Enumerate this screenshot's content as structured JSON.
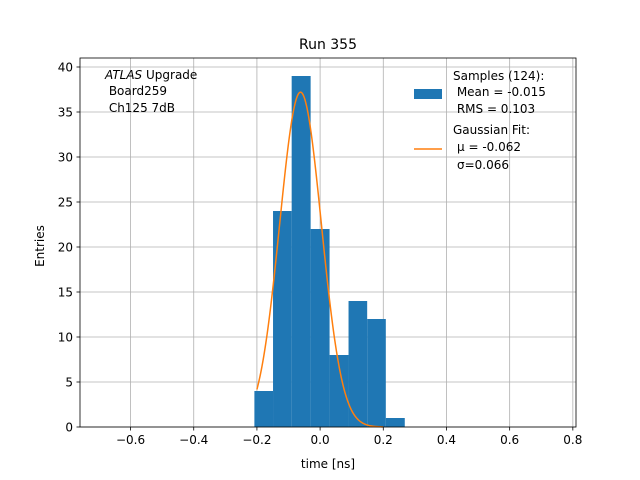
{
  "chart_data": {
    "type": "bar",
    "title": "Run 355",
    "xlabel": "time [ns]",
    "ylabel": "Entries",
    "xlim": [
      -0.76,
      0.81
    ],
    "ylim": [
      0,
      41
    ],
    "grid": true,
    "xticks": [
      -0.6,
      -0.4,
      -0.2,
      0.0,
      0.2,
      0.4,
      0.6,
      0.8
    ],
    "xtick_labels": [
      "−0.6",
      "−0.4",
      "−0.2",
      "0.0",
      "0.2",
      "0.4",
      "0.6",
      "0.8"
    ],
    "yticks": [
      0,
      5,
      10,
      15,
      20,
      25,
      30,
      35,
      40
    ],
    "ytick_labels": [
      "0",
      "5",
      "10",
      "15",
      "20",
      "25",
      "30",
      "35",
      "40"
    ],
    "annotation": {
      "italic": "ATLAS",
      "line1_rest": " Upgrade",
      "line2": " Board259",
      "line3": " Ch125 7dB"
    },
    "histogram": {
      "color": "#1f77b4",
      "bin_edges": [
        -0.208,
        -0.149,
        -0.09,
        -0.03,
        0.03,
        0.09,
        0.149,
        0.208,
        0.268
      ],
      "counts": [
        4,
        24,
        39,
        22,
        8,
        14,
        12,
        1
      ]
    },
    "fit": {
      "color": "#ff7f0e",
      "amplitude": 37.2,
      "mu": -0.062,
      "sigma": 0.066,
      "x_range": [
        -0.2,
        0.2
      ]
    },
    "legend": {
      "placement": "top-right",
      "entries": [
        {
          "kind": "patch",
          "lines": [
            "Samples (124):",
            " Mean = -0.015",
            " RMS = 0.103"
          ]
        },
        {
          "kind": "line",
          "lines": [
            "Gaussian Fit:",
            "μ = -0.062",
            "σ=0.066"
          ]
        }
      ]
    }
  }
}
